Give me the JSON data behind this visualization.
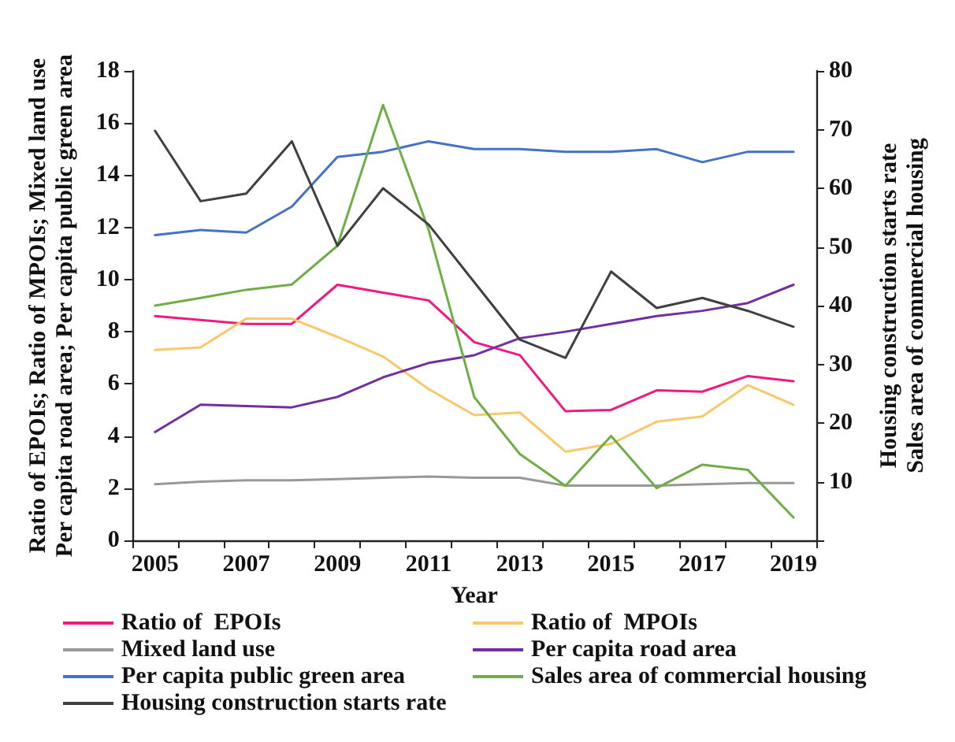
{
  "chart_data": {
    "type": "line",
    "xlabel": "Year",
    "ylabel": "Ratio of EPOIs; Ratio of MPOIs; Mixed land use\nPer capita road area; Per capita public green area",
    "y2label": "Housing construction starts rate\nSales area of commercial housing",
    "categories": [
      "2005",
      null,
      "2007",
      null,
      "2009",
      null,
      "2011",
      null,
      "2013",
      null,
      "2015",
      null,
      "2017",
      null,
      "2019"
    ],
    "ylim": [
      0,
      18
    ],
    "yticks": [
      0,
      2,
      4,
      6,
      8,
      10,
      12,
      14,
      16,
      18
    ],
    "y2lim": [
      0,
      80
    ],
    "y2ticks": [
      {
        "value": 0,
        "label": null
      },
      10,
      20,
      30,
      40,
      50,
      60,
      70,
      80
    ],
    "legend": "bottom",
    "grid": false,
    "marker": "none",
    "line_style": "solid",
    "series": [
      {
        "name": "Ratio of  EPOIs",
        "color": "#f0197f",
        "values": [
          8.6,
          8.45,
          8.3,
          8.3,
          9.8,
          9.5,
          9.2,
          7.6,
          7.1,
          4.95,
          5.0,
          5.75,
          5.7,
          6.3,
          6.1
        ]
      },
      {
        "name": "Ratio of  MPOIs",
        "color": "#f9c86b",
        "values": [
          7.3,
          7.4,
          8.5,
          8.5,
          7.8,
          7.05,
          5.8,
          4.8,
          4.9,
          3.4,
          3.7,
          4.55,
          4.75,
          5.95,
          5.2
        ]
      },
      {
        "name": "Mixed land use",
        "color": "#999999",
        "values": [
          2.15,
          2.25,
          2.3,
          2.3,
          2.35,
          2.4,
          2.45,
          2.4,
          2.4,
          2.1,
          2.1,
          2.1,
          2.15,
          2.2,
          2.2
        ]
      },
      {
        "name": "Per capita road area",
        "color": "#7030a0",
        "values": [
          4.15,
          5.2,
          5.15,
          5.1,
          5.5,
          6.25,
          6.8,
          7.1,
          7.75,
          8.0,
          8.3,
          8.6,
          8.8,
          9.1,
          9.8
        ]
      },
      {
        "name": "Per capita public green area",
        "color": "#4472c4",
        "values": [
          11.7,
          11.9,
          11.8,
          12.8,
          14.7,
          14.9,
          15.3,
          15.0,
          15.0,
          14.9,
          14.9,
          15.0,
          14.5,
          14.9,
          14.9
        ]
      },
      {
        "name": "Sales area of commercial housing",
        "color": "#70ad47",
        "axis": "y2",
        "values": [
          40,
          41.3,
          42.7,
          43.6,
          50.2,
          74.2,
          52.9,
          24.4,
          14.7,
          9.3,
          17.8,
          8.9,
          12.9,
          12,
          3.9
        ]
      },
      {
        "name": "Housing construction starts rate",
        "color": "#404040",
        "axis": "y2",
        "values": [
          69.8,
          57.8,
          59.1,
          68,
          50.2,
          60,
          53.8,
          44,
          34.2,
          31.1,
          45.8,
          39.6,
          41.3,
          39.1,
          36.4
        ]
      }
    ]
  }
}
